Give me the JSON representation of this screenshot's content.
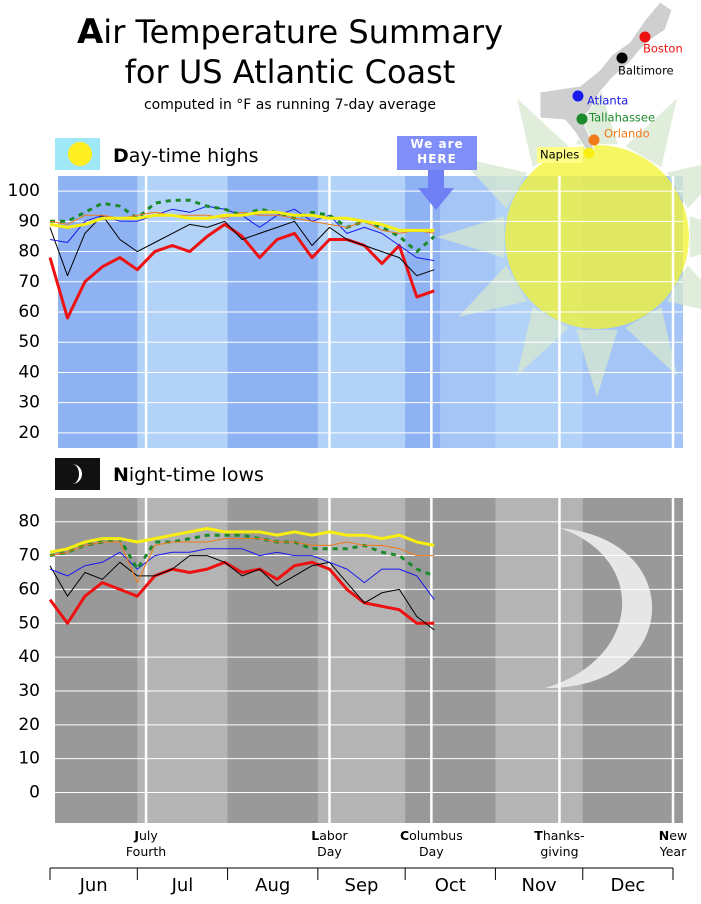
{
  "title": "Air Temperature Summary for US Atlantic Coast",
  "subtitle": "computed in °F as running 7-day average",
  "annotation": "We are HERE",
  "months": [
    "Jun",
    "Jul",
    "Aug",
    "Sep",
    "Oct",
    "Nov",
    "Dec"
  ],
  "month_bounds": [
    0,
    30,
    61,
    92,
    122,
    153,
    183,
    214
  ],
  "holidays": [
    {
      "day": 33,
      "label": [
        "July",
        "Fourth"
      ]
    },
    {
      "day": 96,
      "label": [
        "Labor",
        "Day"
      ]
    },
    {
      "day": 131,
      "label": [
        "Columbus",
        "Day"
      ]
    },
    {
      "day": 175,
      "label": [
        "Thanks-",
        "giving"
      ]
    },
    {
      "day": 214,
      "label": [
        "New",
        "Year"
      ]
    }
  ],
  "chart_data": [
    {
      "type": "line",
      "title": "Day-time highs",
      "x": [
        0,
        6,
        12,
        18,
        24,
        30,
        36,
        42,
        48,
        54,
        60,
        66,
        72,
        78,
        84,
        90,
        96,
        102,
        108,
        114,
        120,
        126,
        132
      ],
      "xlim": [
        0,
        214
      ],
      "ylim": [
        15,
        105
      ],
      "yticks": [
        20,
        30,
        40,
        50,
        60,
        70,
        80,
        90,
        100
      ],
      "grid": true,
      "series": [
        {
          "name": "Boston",
          "color": "#ee1111",
          "values": [
            78,
            58,
            70,
            75,
            78,
            74,
            80,
            82,
            80,
            85,
            89,
            85,
            78,
            84,
            86,
            78,
            84,
            84,
            82,
            76,
            82,
            65,
            67
          ]
        },
        {
          "name": "Baltimore",
          "color": "#000000",
          "values": [
            88,
            72,
            86,
            92,
            84,
            80,
            83,
            86,
            89,
            88,
            90,
            84,
            86,
            88,
            90,
            82,
            88,
            84,
            82,
            80,
            78,
            72,
            74
          ]
        },
        {
          "name": "Atlanta",
          "color": "#1a1aee",
          "values": [
            84,
            83,
            90,
            92,
            90,
            90,
            92,
            94,
            93,
            95,
            94,
            92,
            88,
            92,
            94,
            90,
            92,
            86,
            88,
            86,
            82,
            78,
            77
          ]
        },
        {
          "name": "Tallahassee",
          "color": "#1a8a2a",
          "dashed": true,
          "values": [
            90,
            90,
            93,
            96,
            95,
            91,
            96,
            97,
            97,
            95,
            94,
            92,
            94,
            93,
            91,
            93,
            92,
            88,
            90,
            88,
            85,
            80,
            85
          ]
        },
        {
          "name": "Orlando",
          "color": "#f07a1a",
          "values": [
            90,
            89,
            92,
            92,
            91,
            92,
            93,
            92,
            92,
            92,
            91,
            93,
            92,
            92,
            91,
            90,
            89,
            88,
            90,
            87,
            86,
            87,
            86
          ]
        },
        {
          "name": "Naples",
          "color": "#f8ee10",
          "values": [
            89,
            88,
            89,
            91,
            91,
            91,
            92,
            92,
            91,
            91,
            92,
            92,
            93,
            93,
            92,
            92,
            91,
            91,
            90,
            89,
            87,
            87,
            87
          ]
        }
      ]
    },
    {
      "type": "line",
      "title": "Night-time lows",
      "x": [
        0,
        6,
        12,
        18,
        24,
        30,
        36,
        42,
        48,
        54,
        60,
        66,
        72,
        78,
        84,
        90,
        96,
        102,
        108,
        114,
        120,
        126,
        132
      ],
      "xlim": [
        0,
        214
      ],
      "ylim": [
        -9,
        87
      ],
      "yticks": [
        0,
        10,
        20,
        30,
        40,
        50,
        60,
        70,
        80
      ],
      "grid": true,
      "series": [
        {
          "color": "#ee1111",
          "values": [
            57,
            50,
            58,
            62,
            60,
            58,
            64,
            66,
            65,
            66,
            68,
            65,
            66,
            63,
            67,
            68,
            66,
            60,
            56,
            55,
            54,
            50,
            50
          ]
        },
        {
          "color": "#000000",
          "values": [
            67,
            58,
            65,
            63,
            68,
            64,
            64,
            66,
            70,
            70,
            68,
            64,
            66,
            61,
            64,
            67,
            68,
            62,
            56,
            59,
            60,
            52,
            48
          ]
        },
        {
          "color": "#1a1aee",
          "values": [
            66,
            64,
            67,
            68,
            71,
            66,
            70,
            71,
            71,
            72,
            72,
            72,
            70,
            71,
            70,
            70,
            68,
            66,
            62,
            66,
            66,
            64,
            57
          ]
        },
        {
          "color": "#1a8a2a",
          "dashed": true,
          "values": [
            70,
            71,
            73,
            74,
            75,
            66,
            74,
            74,
            75,
            76,
            76,
            76,
            75,
            74,
            74,
            72,
            72,
            72,
            73,
            71,
            70,
            66,
            64
          ]
        },
        {
          "color": "#f07a1a",
          "values": [
            70,
            71,
            73,
            74,
            74,
            62,
            73,
            74,
            74,
            74,
            75,
            75,
            75,
            74,
            74,
            73,
            73,
            74,
            73,
            73,
            72,
            70,
            70
          ]
        },
        {
          "color": "#f8ee10",
          "values": [
            71,
            72,
            74,
            75,
            75,
            74,
            75,
            76,
            77,
            78,
            77,
            77,
            77,
            76,
            77,
            76,
            77,
            76,
            76,
            75,
            76,
            74,
            73
          ]
        }
      ]
    }
  ]
}
